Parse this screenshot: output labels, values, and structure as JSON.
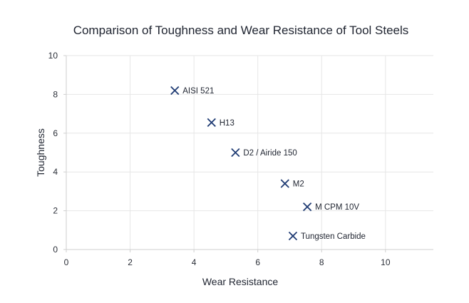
{
  "colors": {
    "marker": "#1f3b73",
    "grid": "#e6e6e6",
    "axis": "#cfcfcf",
    "text": "#1f2430"
  },
  "chart_data": {
    "type": "scatter",
    "title": "Comparison of Toughness and Wear Resistance of Tool Steels",
    "xlabel": "Wear Resistance",
    "ylabel": "Toughness",
    "xlim": [
      0,
      11.5
    ],
    "ylim": [
      0,
      10
    ],
    "xticks": [
      0,
      2,
      4,
      6,
      8,
      10
    ],
    "yticks": [
      0,
      2,
      4,
      6,
      8,
      10
    ],
    "grid": true,
    "marker": "x",
    "points": [
      {
        "label": "AISI 521",
        "x": 3.4,
        "y": 8.2
      },
      {
        "label": "H13",
        "x": 4.55,
        "y": 6.55
      },
      {
        "label": "D2 / Airide 150",
        "x": 5.3,
        "y": 5.0
      },
      {
        "label": "M2",
        "x": 6.85,
        "y": 3.4
      },
      {
        "label": "M CPM 10V",
        "x": 7.55,
        "y": 2.2
      },
      {
        "label": "Tungsten Carbide",
        "x": 7.1,
        "y": 0.7
      }
    ]
  }
}
